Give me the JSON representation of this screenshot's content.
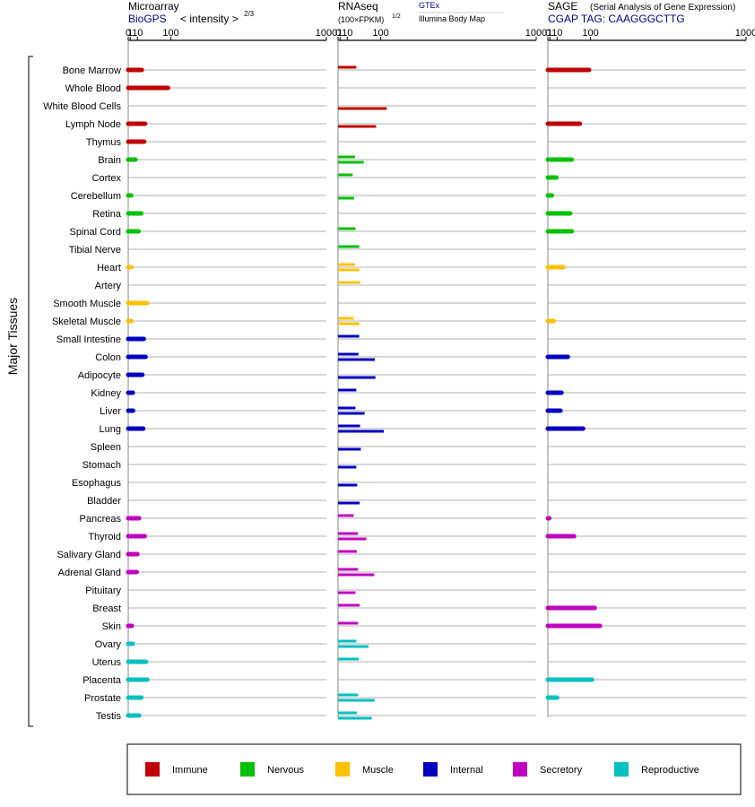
{
  "colors": {
    "Immune": "#c00000",
    "Nervous": "#00c000",
    "Muscle": "#ffc000",
    "Internal": "#0000c0",
    "Secretory": "#c000c0",
    "Reproductive": "#00c0c0"
  },
  "y_axis_title": "Major Tissues",
  "legend": [
    "Immune",
    "Nervous",
    "Muscle",
    "Internal",
    "Secretory",
    "Reproductive"
  ],
  "headers": {
    "microarray": {
      "title": "Microarray",
      "source": "BioGPS",
      "note": "< intensity >",
      "exponent": "2/3"
    },
    "rnaseq": {
      "title": "RNAseq",
      "unit": "(100×FPKM)",
      "exponent": "1/2",
      "gtex": "GTEx",
      "body_map": "Illumina Body Map"
    },
    "sage": {
      "title": "SAGE",
      "subtitle": "(Serial Analysis of Gene Expression)",
      "tag": "CGAP TAG: CAAGGGCTTG"
    }
  },
  "chart_data": {
    "type": "bar",
    "orientation": "horizontal",
    "x_scale": "pseudo-log",
    "x_ticks": [
      "0",
      "1",
      "10",
      "100",
      "1000"
    ],
    "x_range": [
      0,
      1000
    ],
    "categories": [
      "Bone Marrow",
      "Whole Blood",
      "White Blood Cells",
      "Lymph Node",
      "Thymus",
      "Brain",
      "Cortex",
      "Cerebellum",
      "Retina",
      "Spinal Cord",
      "Tibial Nerve",
      "Heart",
      "Artery",
      "Smooth Muscle",
      "Skeletal Muscle",
      "Small Intestine",
      "Colon",
      "Adipocyte",
      "Kidney",
      "Liver",
      "Lung",
      "Spleen",
      "Stomach",
      "Esophagus",
      "Bladder",
      "Pancreas",
      "Thyroid",
      "Salivary Gland",
      "Adrenal Gland",
      "Pituitary",
      "Breast",
      "Skin",
      "Ovary",
      "Uterus",
      "Placenta",
      "Prostate",
      "Testis"
    ],
    "groups": [
      "Immune",
      "Immune",
      "Immune",
      "Immune",
      "Immune",
      "Nervous",
      "Nervous",
      "Nervous",
      "Nervous",
      "Nervous",
      "Nervous",
      "Muscle",
      "Muscle",
      "Muscle",
      "Muscle",
      "Internal",
      "Internal",
      "Internal",
      "Internal",
      "Internal",
      "Internal",
      "Internal",
      "Internal",
      "Internal",
      "Internal",
      "Secretory",
      "Secretory",
      "Secretory",
      "Secretory",
      "Secretory",
      "Secretory",
      "Secretory",
      "Reproductive",
      "Reproductive",
      "Reproductive",
      "Reproductive",
      "Reproductive"
    ],
    "panels": [
      {
        "name": "Microarray",
        "values": [
          18,
          90,
          null,
          25,
          23,
          7,
          null,
          1.8,
          17,
          12,
          null,
          2,
          null,
          30,
          2,
          22,
          26,
          19,
          3.5,
          3.8,
          21,
          null,
          null,
          null,
          null,
          13,
          24,
          10,
          9,
          null,
          null,
          2.5,
          3.5,
          27,
          30,
          17,
          13
        ]
      },
      {
        "name": "RNAseq GTEx",
        "values": [
          28,
          null,
          null,
          null,
          null,
          25,
          20,
          null,
          null,
          26,
          35,
          25,
          37,
          null,
          22,
          35,
          33,
          null,
          28,
          26,
          37,
          null,
          null,
          null,
          null,
          22,
          32,
          29,
          32,
          null,
          36,
          32,
          28,
          34,
          null,
          32,
          29
        ]
      },
      {
        "name": "RNAseq Illumina Body Map",
        "values": [
          null,
          null,
          122,
          84,
          null,
          47,
          null,
          23,
          null,
          null,
          null,
          35,
          null,
          null,
          35,
          null,
          80,
          82,
          null,
          49,
          111,
          39,
          28,
          30,
          36,
          null,
          54,
          null,
          78,
          26,
          null,
          null,
          60,
          null,
          null,
          79,
          70
        ]
      },
      {
        "name": "SAGE",
        "values": [
          95,
          null,
          null,
          65,
          null,
          42,
          9,
          3,
          38,
          42,
          null,
          22,
          null,
          null,
          5,
          null,
          32,
          null,
          18,
          16,
          75,
          null,
          null,
          null,
          null,
          0.03,
          48,
          null,
          null,
          null,
          115,
          135,
          null,
          null,
          105,
          10,
          null
        ]
      }
    ]
  }
}
